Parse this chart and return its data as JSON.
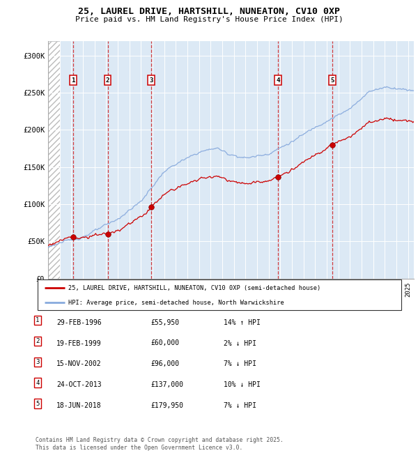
{
  "title1": "25, LAUREL DRIVE, HARTSHILL, NUNEATON, CV10 0XP",
  "title2": "Price paid vs. HM Land Registry's House Price Index (HPI)",
  "ylim": [
    0,
    320000
  ],
  "yticks": [
    0,
    50000,
    100000,
    150000,
    200000,
    250000,
    300000
  ],
  "ytick_labels": [
    "£0",
    "£50K",
    "£100K",
    "£150K",
    "£200K",
    "£250K",
    "£300K"
  ],
  "xlim_start": 1994.0,
  "xlim_end": 2025.5,
  "hpi_color": "#88aadd",
  "price_color": "#cc0000",
  "sale_dates": [
    1996.16,
    1999.13,
    2002.88,
    2013.82,
    2018.46
  ],
  "sale_prices": [
    55950,
    60000,
    96000,
    137000,
    179950
  ],
  "sale_labels": [
    "1",
    "2",
    "3",
    "4",
    "5"
  ],
  "sale_info": [
    {
      "num": "1",
      "date": "29-FEB-1996",
      "price": "£55,950",
      "rel": "14% ↑ HPI"
    },
    {
      "num": "2",
      "date": "19-FEB-1999",
      "price": "£60,000",
      "rel": "2% ↓ HPI"
    },
    {
      "num": "3",
      "date": "15-NOV-2002",
      "price": "£96,000",
      "rel": "7% ↓ HPI"
    },
    {
      "num": "4",
      "date": "24-OCT-2013",
      "price": "£137,000",
      "rel": "10% ↓ HPI"
    },
    {
      "num": "5",
      "date": "18-JUN-2018",
      "price": "£179,950",
      "rel": "7% ↓ HPI"
    }
  ],
  "legend_line1": "25, LAUREL DRIVE, HARTSHILL, NUNEATON, CV10 0XP (semi-detached house)",
  "legend_line2": "HPI: Average price, semi-detached house, North Warwickshire",
  "footnote": "Contains HM Land Registry data © Crown copyright and database right 2025.\nThis data is licensed under the Open Government Licence v3.0.",
  "plot_bg_color": "#dce9f5"
}
